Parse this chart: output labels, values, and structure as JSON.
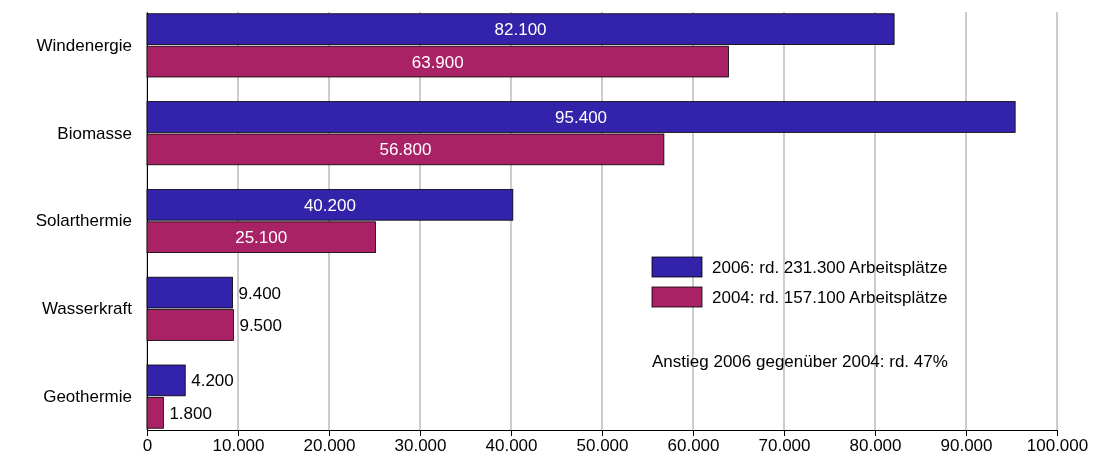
{
  "chart_data": {
    "type": "bar",
    "orientation": "horizontal",
    "categories": [
      "Windenergie",
      "Biomasse",
      "Solarthermie",
      "Wasserkraft",
      "Geothermie"
    ],
    "series": [
      {
        "name": "2006: rd. 231.300 Arbeitsplätze",
        "color": "#3322aa",
        "values": [
          82100,
          95400,
          40200,
          9400,
          4200
        ],
        "value_labels": [
          "82.100",
          "95.400",
          "40.200",
          "9.400",
          "4.200"
        ]
      },
      {
        "name": "2004: rd. 157.100 Arbeitsplätze",
        "color": "#aa2266",
        "values": [
          63900,
          56800,
          25100,
          9500,
          1800
        ],
        "value_labels": [
          "63.900",
          "56.800",
          "25.100",
          "9.500",
          "1.800"
        ]
      }
    ],
    "xlim": [
      0,
      100000
    ],
    "xticks": [
      0,
      {
        "value": 10000,
        "label": "10.000"
      },
      {
        "value": 20000,
        "label": "20.000"
      },
      {
        "value": 30000,
        "label": "30.000"
      },
      {
        "value": 40000,
        "label": "40.000"
      },
      {
        "value": 50000,
        "label": "50.000"
      },
      {
        "value": 60000,
        "label": "60.000"
      },
      {
        "value": 70000,
        "label": "70.000"
      },
      {
        "value": 80000,
        "label": "80.000"
      },
      {
        "value": 90000,
        "label": "90.000"
      },
      {
        "value": 100000,
        "label": "100.000"
      }
    ],
    "grid": "x",
    "legend": "right",
    "annotations": [
      "Anstieg 2006 gegenüber 2004: rd. 47%"
    ]
  }
}
